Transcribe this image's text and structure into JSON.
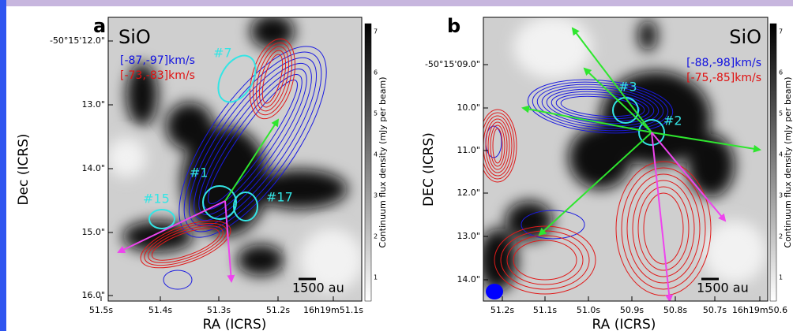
{
  "panels": [
    {
      "label": "a",
      "line": "SiO",
      "blue_range": "[-87,-97]km/s",
      "red_range": "[-73,-83]km/s",
      "sources": [
        "#7",
        "#1",
        "#17",
        "#15"
      ],
      "scale_bar": "1500 au",
      "ylabel": "Dec (ICRS)",
      "xlabel": "RA (ICRS)",
      "yticks": [
        "-50°15'12.0\"",
        "13.0\"",
        "14.0\"",
        "15.0\"",
        "16.0\""
      ],
      "xticks": [
        "51.5s",
        "51.4s",
        "51.3s",
        "51.2s",
        "16h19m51.1s"
      ],
      "colorbar": {
        "label": "Continuum flux density (mJy per beam)",
        "ticks": [
          1,
          2,
          3,
          4,
          5,
          6,
          7
        ]
      }
    },
    {
      "label": "b",
      "line": "SiO",
      "blue_range": "[-88,-98]km/s",
      "red_range": "[-75,-85]km/s",
      "sources": [
        "#3",
        "#2"
      ],
      "scale_bar": "1500 au",
      "ylabel": "DEC (ICRS)",
      "xlabel": "RA (ICRS)",
      "yticks": [
        "-50°15'09.0\"",
        "10.0\"",
        "11.0\"",
        "12.0\"",
        "13.0\"",
        "14.0\""
      ],
      "xticks": [
        "51.2s",
        "51.1s",
        "51.0s",
        "50.9s",
        "50.8s",
        "50.7s",
        "16h19m50.6"
      ],
      "colorbar": {
        "label": "Continuum flux density (mJy per beam)",
        "ticks": [
          1,
          2,
          3,
          4,
          5,
          6,
          7
        ]
      }
    }
  ]
}
